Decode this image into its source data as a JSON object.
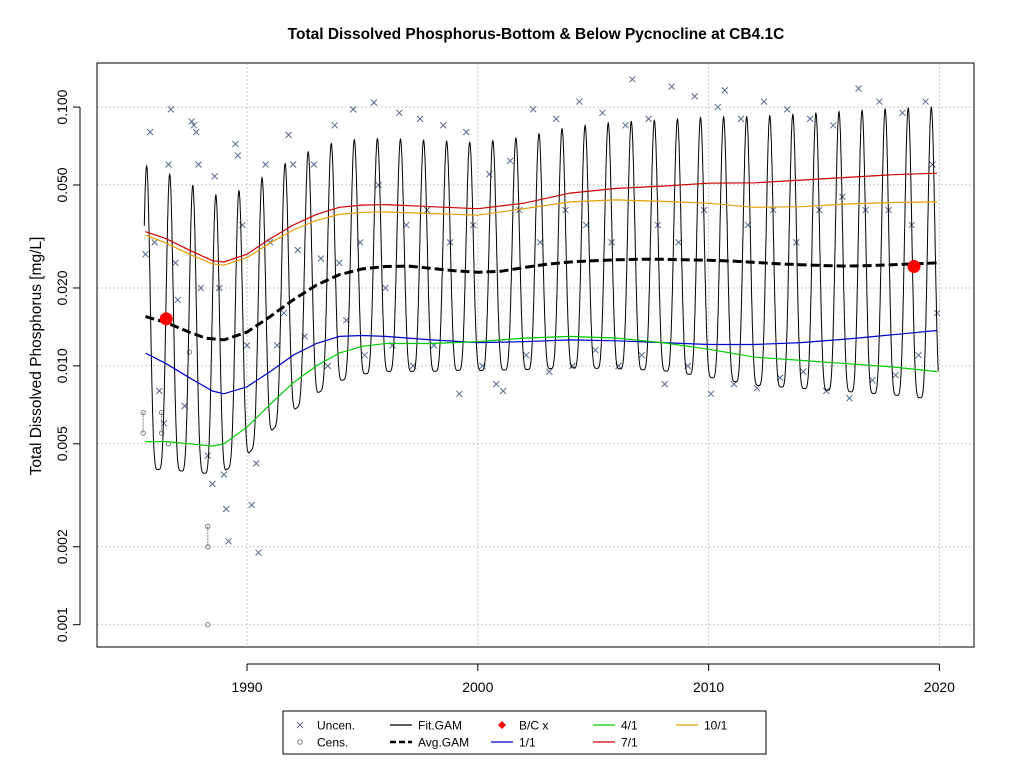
{
  "chart_data": {
    "type": "line",
    "title": "Total Dissolved Phosphorus-Bottom & Below Pycnocline at CB4.1C",
    "xlabel": "",
    "ylabel": "Total Dissolved Phosphorus [mg/L]",
    "yscale": "log",
    "xlim": [
      1983.5,
      2021.5
    ],
    "ylim": [
      0.00082,
      0.148
    ],
    "x_ticks": [
      1990,
      2000,
      2010,
      2020
    ],
    "y_ticks": [
      0.001,
      0.002,
      0.005,
      0.01,
      0.02,
      0.05,
      0.1
    ],
    "x_tick_labels": [
      "1990",
      "2000",
      "2010",
      "2020"
    ],
    "y_tick_labels": [
      "0.001",
      "0.002",
      "0.005",
      "0.010",
      "0.020",
      "0.050",
      "0.100"
    ],
    "grid": true,
    "legend_position": "bottom",
    "legend": [
      {
        "label": "Uncen.",
        "kind": "x-marker",
        "color": "#5a6a8a"
      },
      {
        "label": "Cens.",
        "kind": "circle-marker",
        "color": "#808080"
      },
      {
        "label": "Fit.GAM",
        "kind": "line",
        "color": "#000000"
      },
      {
        "label": "Avg.GAM",
        "kind": "dashed-line",
        "color": "#000000"
      },
      {
        "label": "B/C x",
        "kind": "diamond-marker",
        "color": "#ff0000"
      },
      {
        "label": "1/1",
        "kind": "line",
        "color": "#0000cc"
      },
      {
        "label": "4/1",
        "kind": "line",
        "color": "#00cc00"
      },
      {
        "label": "7/1",
        "kind": "line",
        "color": "#cc0000"
      },
      {
        "label": "10/1",
        "kind": "line",
        "color": "#e6a000"
      }
    ],
    "series": [
      {
        "name": "Avg.GAM",
        "color": "#000000",
        "style": "dashed",
        "x": [
          1985.6,
          1986.5,
          1987.5,
          1988.2,
          1989.0,
          1990.0,
          1991.0,
          1992.0,
          1993.0,
          1994.0,
          1995.0,
          1996.0,
          1997.0,
          1998.0,
          1999.0,
          2000.0,
          2001.0,
          2002.0,
          2003.0,
          2004.0,
          2005.0,
          2006.0,
          2007.0,
          2008.0,
          2009.0,
          2010.0,
          2011.0,
          2012.0,
          2013.0,
          2014.0,
          2015.0,
          2016.0,
          2017.0,
          2018.0,
          2019.0,
          2019.9
        ],
        "y": [
          0.0155,
          0.0147,
          0.0135,
          0.0128,
          0.0126,
          0.0135,
          0.0155,
          0.018,
          0.0205,
          0.0225,
          0.0237,
          0.0242,
          0.0243,
          0.0238,
          0.0233,
          0.023,
          0.0232,
          0.024,
          0.0247,
          0.0252,
          0.0255,
          0.0257,
          0.0258,
          0.0258,
          0.0257,
          0.0256,
          0.0254,
          0.0251,
          0.0248,
          0.0246,
          0.0244,
          0.0243,
          0.0244,
          0.0246,
          0.0248,
          0.025
        ]
      },
      {
        "name": "1/1",
        "color": "#0000cc",
        "x": [
          1985.6,
          1986.5,
          1987.5,
          1988.5,
          1989.0,
          1990.0,
          1991.0,
          1992.0,
          1993.0,
          1994.0,
          1995.0,
          1996.0,
          1998.0,
          2000.0,
          2002.0,
          2004.0,
          2006.0,
          2008.0,
          2010.0,
          2012.0,
          2014.0,
          2016.0,
          2018.0,
          2019.9
        ],
        "y": [
          0.0112,
          0.0102,
          0.009,
          0.008,
          0.0078,
          0.0083,
          0.0095,
          0.011,
          0.0122,
          0.013,
          0.0131,
          0.013,
          0.0126,
          0.0123,
          0.0124,
          0.0126,
          0.0125,
          0.0123,
          0.0121,
          0.0121,
          0.0123,
          0.0127,
          0.0132,
          0.0137
        ]
      },
      {
        "name": "4/1",
        "color": "#00cc00",
        "x": [
          1985.6,
          1986.5,
          1987.5,
          1988.5,
          1989.0,
          1990.0,
          1991.0,
          1992.0,
          1993.0,
          1994.0,
          1995.0,
          1996.0,
          1998.0,
          2000.0,
          2002.0,
          2004.0,
          2006.0,
          2008.0,
          2010.0,
          2012.0,
          2014.0,
          2016.0,
          2018.0,
          2019.9
        ],
        "y": [
          0.0051,
          0.0051,
          0.005,
          0.0049,
          0.005,
          0.0058,
          0.0071,
          0.0086,
          0.01,
          0.0112,
          0.0119,
          0.0122,
          0.0122,
          0.0124,
          0.0128,
          0.013,
          0.0128,
          0.0123,
          0.0116,
          0.0108,
          0.0105,
          0.0102,
          0.0099,
          0.0095
        ]
      },
      {
        "name": "7/1",
        "color": "#cc0000",
        "x": [
          1985.6,
          1986.5,
          1987.5,
          1988.5,
          1989.0,
          1990.0,
          1991.0,
          1992.0,
          1993.0,
          1994.0,
          1995.0,
          1996.0,
          1998.0,
          2000.0,
          2002.0,
          2004.0,
          2006.0,
          2008.0,
          2010.0,
          2012.0,
          2014.0,
          2016.0,
          2018.0,
          2019.9
        ],
        "y": [
          0.033,
          0.031,
          0.028,
          0.0255,
          0.0252,
          0.027,
          0.031,
          0.035,
          0.0385,
          0.041,
          0.0418,
          0.042,
          0.0412,
          0.0405,
          0.0425,
          0.0465,
          0.0485,
          0.0495,
          0.0508,
          0.051,
          0.0522,
          0.0535,
          0.0548,
          0.0555
        ]
      },
      {
        "name": "10/1",
        "color": "#e6a000",
        "x": [
          1985.6,
          1986.5,
          1987.5,
          1988.5,
          1989.0,
          1990.0,
          1991.0,
          1992.0,
          1993.0,
          1994.0,
          1995.0,
          1996.0,
          1998.0,
          2000.0,
          2002.0,
          2004.0,
          2006.0,
          2008.0,
          2010.0,
          2012.0,
          2014.0,
          2016.0,
          2018.0,
          2019.9
        ],
        "y": [
          0.032,
          0.0298,
          0.027,
          0.0248,
          0.0245,
          0.0262,
          0.0298,
          0.0335,
          0.0365,
          0.0385,
          0.0392,
          0.0393,
          0.0388,
          0.0382,
          0.0405,
          0.043,
          0.0438,
          0.0432,
          0.0425,
          0.041,
          0.0412,
          0.0422,
          0.0428,
          0.043
        ]
      }
    ],
    "bc_points": [
      {
        "x": 1986.5,
        "y": 0.0152
      },
      {
        "x": 2018.9,
        "y": 0.0242
      }
    ],
    "censored_points": [
      {
        "x": 1985.5,
        "y_low": 0.0055,
        "y_high": 0.0066
      },
      {
        "x": 1986.3,
        "y_low": 0.0055,
        "y_high": 0.0066
      },
      {
        "x": 1986.6,
        "y_low": 0.005,
        "y_high": 0.005
      },
      {
        "x": 1987.5,
        "y_low": 0.0113,
        "y_high": 0.0113
      },
      {
        "x": 1988.3,
        "y_low": 0.002,
        "y_high": 0.0024
      },
      {
        "x": 1988.3,
        "y_low": 0.001,
        "y_high": 0.001
      }
    ],
    "uncensored_points": [
      [
        1985.6,
        0.027
      ],
      [
        1985.8,
        0.08
      ],
      [
        1986.0,
        0.03
      ],
      [
        1986.2,
        0.008
      ],
      [
        1986.4,
        0.006
      ],
      [
        1986.6,
        0.06
      ],
      [
        1986.7,
        0.098
      ],
      [
        1986.9,
        0.025
      ],
      [
        1987.0,
        0.018
      ],
      [
        1987.3,
        0.007
      ],
      [
        1987.6,
        0.088
      ],
      [
        1987.7,
        0.085
      ],
      [
        1987.8,
        0.08
      ],
      [
        1987.9,
        0.06
      ],
      [
        1988.0,
        0.02
      ],
      [
        1988.3,
        0.0045
      ],
      [
        1988.5,
        0.0035
      ],
      [
        1988.6,
        0.054
      ],
      [
        1988.8,
        0.02
      ],
      [
        1989.0,
        0.0038
      ],
      [
        1989.1,
        0.0028
      ],
      [
        1989.2,
        0.0021
      ],
      [
        1989.5,
        0.072
      ],
      [
        1989.6,
        0.065
      ],
      [
        1989.8,
        0.035
      ],
      [
        1990.0,
        0.012
      ],
      [
        1990.2,
        0.0029
      ],
      [
        1990.4,
        0.0042
      ],
      [
        1990.5,
        0.0019
      ],
      [
        1990.8,
        0.06
      ],
      [
        1991.0,
        0.03
      ],
      [
        1991.3,
        0.012
      ],
      [
        1991.6,
        0.016
      ],
      [
        1991.8,
        0.078
      ],
      [
        1992.0,
        0.06
      ],
      [
        1992.2,
        0.028
      ],
      [
        1992.5,
        0.013
      ],
      [
        1992.9,
        0.06
      ],
      [
        1993.2,
        0.026
      ],
      [
        1993.5,
        0.01
      ],
      [
        1993.8,
        0.085
      ],
      [
        1994.0,
        0.025
      ],
      [
        1994.3,
        0.015
      ],
      [
        1994.6,
        0.098
      ],
      [
        1994.9,
        0.03
      ],
      [
        1995.1,
        0.011
      ],
      [
        1995.5,
        0.104
      ],
      [
        1995.7,
        0.05
      ],
      [
        1996.0,
        0.02
      ],
      [
        1996.3,
        0.012
      ],
      [
        1996.6,
        0.095
      ],
      [
        1996.9,
        0.035
      ],
      [
        1997.2,
        0.01
      ],
      [
        1997.5,
        0.09
      ],
      [
        1997.8,
        0.04
      ],
      [
        1998.1,
        0.012
      ],
      [
        1998.5,
        0.085
      ],
      [
        1998.8,
        0.03
      ],
      [
        1999.2,
        0.0078
      ],
      [
        1999.5,
        0.08
      ],
      [
        1999.8,
        0.035
      ],
      [
        2000.2,
        0.01
      ],
      [
        2000.5,
        0.055
      ],
      [
        2000.8,
        0.0085
      ],
      [
        2001.1,
        0.008
      ],
      [
        2001.4,
        0.062
      ],
      [
        2001.8,
        0.04
      ],
      [
        2002.1,
        0.011
      ],
      [
        2002.4,
        0.098
      ],
      [
        2002.7,
        0.03
      ],
      [
        2003.1,
        0.0095
      ],
      [
        2003.4,
        0.09
      ],
      [
        2003.8,
        0.04
      ],
      [
        2004.1,
        0.01
      ],
      [
        2004.4,
        0.105
      ],
      [
        2004.7,
        0.035
      ],
      [
        2005.1,
        0.0115
      ],
      [
        2005.4,
        0.095
      ],
      [
        2005.8,
        0.03
      ],
      [
        2006.1,
        0.01
      ],
      [
        2006.4,
        0.085
      ],
      [
        2006.7,
        0.128
      ],
      [
        2007.1,
        0.011
      ],
      [
        2007.4,
        0.09
      ],
      [
        2007.8,
        0.035
      ],
      [
        2008.1,
        0.0085
      ],
      [
        2008.4,
        0.12
      ],
      [
        2008.7,
        0.03
      ],
      [
        2009.1,
        0.01
      ],
      [
        2009.4,
        0.11
      ],
      [
        2009.8,
        0.04
      ],
      [
        2010.1,
        0.0078
      ],
      [
        2010.4,
        0.1
      ],
      [
        2010.7,
        0.116
      ],
      [
        2011.1,
        0.0085
      ],
      [
        2011.4,
        0.09
      ],
      [
        2011.7,
        0.035
      ],
      [
        2012.1,
        0.0082
      ],
      [
        2012.4,
        0.105
      ],
      [
        2012.8,
        0.04
      ],
      [
        2013.1,
        0.009
      ],
      [
        2013.4,
        0.098
      ],
      [
        2013.8,
        0.03
      ],
      [
        2014.1,
        0.0095
      ],
      [
        2014.4,
        0.09
      ],
      [
        2014.8,
        0.04
      ],
      [
        2015.1,
        0.008
      ],
      [
        2015.4,
        0.085
      ],
      [
        2015.8,
        0.045
      ],
      [
        2016.1,
        0.0075
      ],
      [
        2016.5,
        0.118
      ],
      [
        2016.8,
        0.04
      ],
      [
        2017.1,
        0.0088
      ],
      [
        2017.4,
        0.105
      ],
      [
        2017.8,
        0.04
      ],
      [
        2018.1,
        0.0092
      ],
      [
        2018.4,
        0.095
      ],
      [
        2018.8,
        0.035
      ],
      [
        2019.1,
        0.011
      ],
      [
        2019.4,
        0.105
      ],
      [
        2019.7,
        0.06
      ],
      [
        2019.9,
        0.016
      ]
    ]
  }
}
